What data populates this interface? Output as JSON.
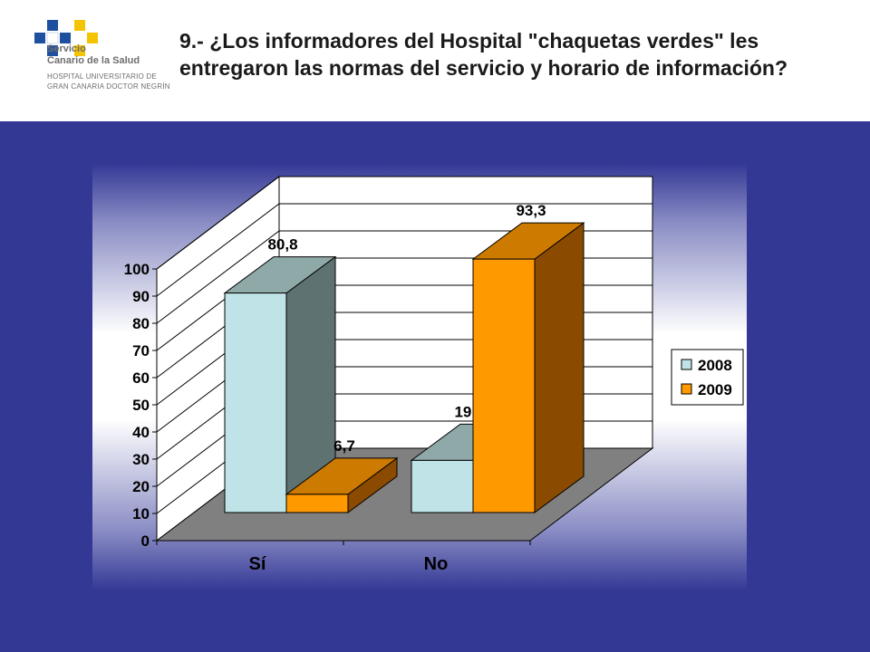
{
  "header": {
    "title": "9.- ¿Los informadores del Hospital \"chaquetas verdes\" les entregaron las normas del servicio y horario de información?",
    "logo": {
      "line1": "Servicio",
      "line2": "Canario de la Salud",
      "line3": "HOSPITAL UNIVERSITARIO DE",
      "line4": "GRAN CANARIA DOCTOR NEGRÍN"
    }
  },
  "colors": {
    "background": "#343895",
    "series_2008": "#bfe3e6",
    "series_2009": "#ff9900",
    "floor": "#808080"
  },
  "chart_data": {
    "type": "bar",
    "three_d": true,
    "categories": [
      "Sí",
      "No"
    ],
    "series": [
      {
        "name": "2008",
        "values": [
          80.8,
          19.2
        ]
      },
      {
        "name": "2009",
        "values": [
          6.7,
          93.3
        ]
      }
    ],
    "data_labels": {
      "2008": [
        "80,8",
        "19,2"
      ],
      "2009": [
        "6,7",
        "93,3"
      ]
    },
    "y_ticks": [
      "0",
      "10",
      "20",
      "30",
      "40",
      "50",
      "60",
      "70",
      "80",
      "90",
      "100"
    ],
    "ylim": [
      0,
      100
    ],
    "grid": true,
    "legend_position": "right"
  }
}
